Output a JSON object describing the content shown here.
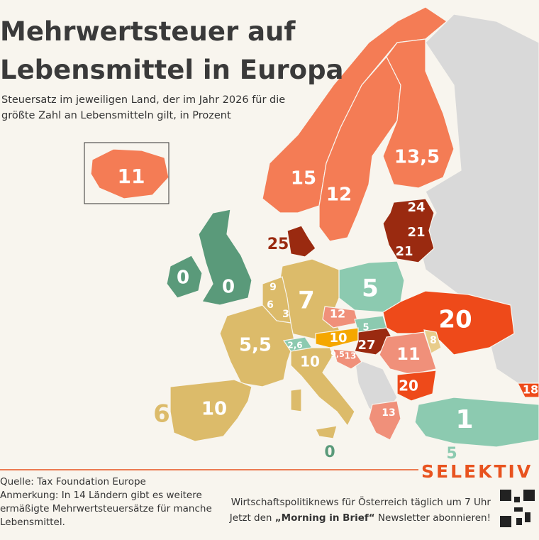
{
  "header": {
    "title_lines": [
      "Mehrwertsteuer auf",
      "Lebensmittel in Europa"
    ],
    "subtitle_lines": [
      "Steuersatz im jeweiligen Land, der im Jahr 2026 für die",
      "größte Zahl an Lebensmitteln gilt, in Prozent"
    ]
  },
  "map": {
    "labels": [
      "11",
      "15",
      "12",
      "13,5",
      "24",
      "21",
      "21",
      "25",
      "0",
      "0",
      "5",
      "7",
      "9",
      "6",
      "3",
      "12",
      "5",
      "10",
      "27",
      "20",
      "8",
      "11",
      "5,5",
      "2,6",
      "9,5",
      "13",
      "10",
      "20",
      "18",
      "6",
      "10",
      "13",
      "1",
      "0",
      "5"
    ]
  },
  "footer": {
    "brand": "SELEKTIV",
    "notes": [
      "Quelle: Tax Foundation Europe",
      "Anmerkung: In 14 Ländern gibt es weitere",
      "ermäßigte Mehrwertsteuersätze für manche",
      "Lebensmittel."
    ],
    "promo": [
      "Wirtschaftspolitiknews für Österreich täglich um 7 Uhr",
      "Jetzt den ",
      "„Morning in Brief“",
      " Newsletter abonnieren!"
    ]
  }
}
